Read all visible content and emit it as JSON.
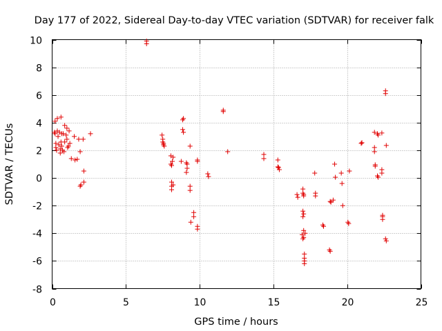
{
  "chart_data": {
    "type": "scatter",
    "title": "Day 177 of 2022, Sidereal Day-to-day VTEC variation (SDTVAR) for receiver falk",
    "xlabel": "GPS time / hours",
    "ylabel": "SDTVAR / TECUs",
    "xlim": [
      0,
      25
    ],
    "ylim": [
      -8,
      10
    ],
    "xticks": [
      0,
      5,
      10,
      15,
      20,
      25
    ],
    "yticks": [
      -8,
      -6,
      -4,
      -2,
      0,
      2,
      4,
      6,
      8,
      10
    ],
    "grid": true,
    "marker": "+",
    "color": "#e00000",
    "series": [
      {
        "name": "SDTVAR",
        "points": [
          [
            0.15,
            3.3
          ],
          [
            0.2,
            4.1
          ],
          [
            0.2,
            3.2
          ],
          [
            0.25,
            2.5
          ],
          [
            0.25,
            2.2
          ],
          [
            0.3,
            2.0
          ],
          [
            0.35,
            4.3
          ],
          [
            0.35,
            3.4
          ],
          [
            0.4,
            3.0
          ],
          [
            0.45,
            2.4
          ],
          [
            0.5,
            3.3
          ],
          [
            0.55,
            2.1
          ],
          [
            0.55,
            1.8
          ],
          [
            0.6,
            4.4
          ],
          [
            0.6,
            2.6
          ],
          [
            0.65,
            3.2
          ],
          [
            0.65,
            2.3
          ],
          [
            0.7,
            2.0
          ],
          [
            0.75,
            3.2
          ],
          [
            0.8,
            1.9
          ],
          [
            0.85,
            3.8
          ],
          [
            0.85,
            2.6
          ],
          [
            0.95,
            3.1
          ],
          [
            1.0,
            3.6
          ],
          [
            1.0,
            2.8
          ],
          [
            1.05,
            2.2
          ],
          [
            1.1,
            2.3
          ],
          [
            1.15,
            3.4
          ],
          [
            1.2,
            2.5
          ],
          [
            1.3,
            1.4
          ],
          [
            1.5,
            3.0
          ],
          [
            1.55,
            1.3
          ],
          [
            1.7,
            1.35
          ],
          [
            1.8,
            2.8
          ],
          [
            1.9,
            1.9
          ],
          [
            1.9,
            -0.6
          ],
          [
            1.95,
            -0.5
          ],
          [
            2.1,
            2.8
          ],
          [
            2.15,
            0.5
          ],
          [
            2.15,
            -0.3
          ],
          [
            2.6,
            3.2
          ],
          [
            6.4,
            9.9
          ],
          [
            6.4,
            9.7
          ],
          [
            7.45,
            3.1
          ],
          [
            7.5,
            2.8
          ],
          [
            7.5,
            2.6
          ],
          [
            7.55,
            2.5
          ],
          [
            7.55,
            2.4
          ],
          [
            7.6,
            2.3
          ],
          [
            8.05,
            1.6
          ],
          [
            8.05,
            1.0
          ],
          [
            8.1,
            0.9
          ],
          [
            8.1,
            -0.3
          ],
          [
            8.1,
            -0.6
          ],
          [
            8.1,
            -0.85
          ],
          [
            8.15,
            1.2
          ],
          [
            8.2,
            1.5
          ],
          [
            8.2,
            -0.5
          ],
          [
            8.75,
            1.2
          ],
          [
            8.85,
            4.2
          ],
          [
            8.85,
            3.5
          ],
          [
            8.9,
            4.3
          ],
          [
            8.9,
            3.3
          ],
          [
            9.1,
            1.1
          ],
          [
            9.1,
            0.4
          ],
          [
            9.15,
            1.0
          ],
          [
            9.15,
            0.7
          ],
          [
            9.35,
            2.3
          ],
          [
            9.35,
            -0.6
          ],
          [
            9.35,
            -0.9
          ],
          [
            9.4,
            -3.2
          ],
          [
            9.6,
            -2.8
          ],
          [
            9.6,
            -2.5
          ],
          [
            9.85,
            1.3
          ],
          [
            9.85,
            1.2
          ],
          [
            9.85,
            -3.5
          ],
          [
            9.85,
            -3.7
          ],
          [
            10.55,
            0.3
          ],
          [
            10.6,
            0.1
          ],
          [
            11.6,
            4.9
          ],
          [
            11.6,
            4.8
          ],
          [
            11.9,
            1.9
          ],
          [
            14.35,
            1.7
          ],
          [
            14.35,
            1.4
          ],
          [
            15.3,
            1.3
          ],
          [
            15.3,
            0.8
          ],
          [
            15.35,
            0.75
          ],
          [
            15.4,
            0.6
          ],
          [
            16.6,
            -1.2
          ],
          [
            16.65,
            -1.4
          ],
          [
            16.95,
            -4.1
          ],
          [
            17.0,
            -0.8
          ],
          [
            17.0,
            -1.1
          ],
          [
            17.0,
            -2.4
          ],
          [
            17.0,
            -2.8
          ],
          [
            17.0,
            -4.4
          ],
          [
            17.05,
            -1.2
          ],
          [
            17.05,
            -1.3
          ],
          [
            17.05,
            -2.6
          ],
          [
            17.05,
            -3.8
          ],
          [
            17.05,
            -4.3
          ],
          [
            17.1,
            -5.5
          ],
          [
            17.1,
            -5.8
          ],
          [
            17.1,
            -6.0
          ],
          [
            17.1,
            -6.2
          ],
          [
            17.15,
            -4.0
          ],
          [
            17.8,
            0.35
          ],
          [
            17.85,
            -1.1
          ],
          [
            17.85,
            -1.3
          ],
          [
            18.35,
            -3.4
          ],
          [
            18.4,
            -3.5
          ],
          [
            18.8,
            -5.2
          ],
          [
            18.85,
            -5.3
          ],
          [
            18.85,
            -1.7
          ],
          [
            18.9,
            -1.75
          ],
          [
            19.05,
            -1.6
          ],
          [
            19.15,
            1.0
          ],
          [
            19.2,
            0.05
          ],
          [
            19.6,
            0.35
          ],
          [
            19.65,
            -0.4
          ],
          [
            19.7,
            -2.0
          ],
          [
            20.05,
            -3.2
          ],
          [
            20.1,
            -3.3
          ],
          [
            20.15,
            0.5
          ],
          [
            20.95,
            2.5
          ],
          [
            21.0,
            2.55
          ],
          [
            21.85,
            3.3
          ],
          [
            21.85,
            2.2
          ],
          [
            21.85,
            1.9
          ],
          [
            21.9,
            0.95
          ],
          [
            21.9,
            0.85
          ],
          [
            22.05,
            3.2
          ],
          [
            22.1,
            3.1
          ],
          [
            22.05,
            0.15
          ],
          [
            22.1,
            0.05
          ],
          [
            22.35,
            3.25
          ],
          [
            22.35,
            0.6
          ],
          [
            22.35,
            0.35
          ],
          [
            22.4,
            -2.7
          ],
          [
            22.4,
            -2.8
          ],
          [
            22.4,
            -3.0
          ],
          [
            22.6,
            6.3
          ],
          [
            22.6,
            6.1
          ],
          [
            22.6,
            -4.4
          ],
          [
            22.65,
            -4.55
          ],
          [
            22.65,
            2.35
          ]
        ]
      }
    ]
  }
}
